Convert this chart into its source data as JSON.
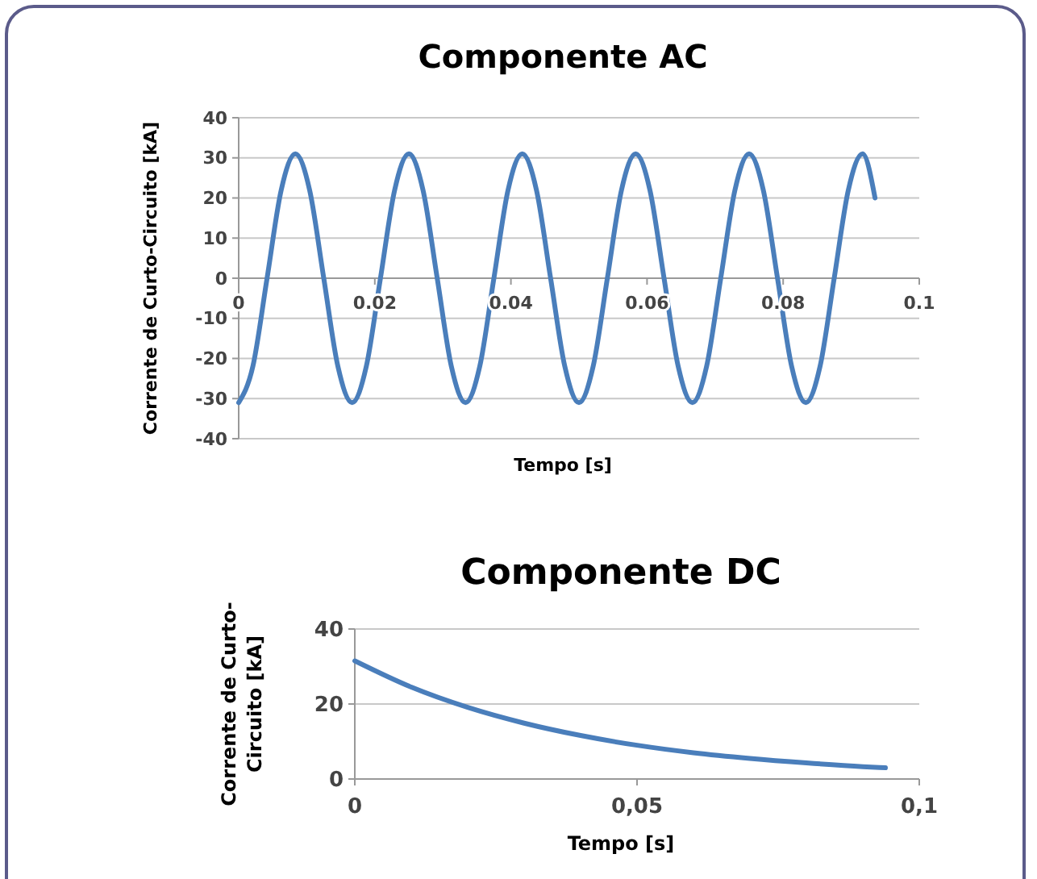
{
  "chart_data": [
    {
      "type": "line",
      "title": "Componente AC",
      "xlabel": "Tempo [s]",
      "ylabel": "Corrente de Curto-Circuito [kA]",
      "xlim": [
        0,
        0.1
      ],
      "xticks": [
        0,
        0.02,
        0.04,
        0.06,
        0.08,
        0.1
      ],
      "ylim": [
        -40,
        40
      ],
      "yticks": [
        -40,
        -30,
        -20,
        -10,
        0,
        10,
        20,
        30,
        40
      ],
      "grid": "y",
      "marker": "none",
      "line_style": "solid",
      "series": [
        {
          "color": "#4a7ebb",
          "x": [
            0,
            0.00208,
            0.00417,
            0.00625,
            0.00833,
            0.01042,
            0.0125,
            0.01458,
            0.01667,
            0.01875,
            0.02083,
            0.02292,
            0.025,
            0.02708,
            0.02917,
            0.03125,
            0.03333,
            0.03542,
            0.0375,
            0.03958,
            0.04167,
            0.04375,
            0.04583,
            0.04792,
            0.05,
            0.05208,
            0.05417,
            0.05625,
            0.05833,
            0.06042,
            0.0625,
            0.06458,
            0.06667,
            0.06875,
            0.07083,
            0.07292,
            0.075,
            0.07708,
            0.07917,
            0.08125,
            0.08333,
            0.08542,
            0.0875,
            0.08958,
            0.09167,
            0.0935
          ],
          "values": [
            -31,
            -22,
            0,
            22,
            31,
            22,
            0,
            -22,
            -31,
            -22,
            0,
            22,
            31,
            22,
            0,
            -22,
            -31,
            -22,
            0,
            22,
            31,
            22,
            0,
            -22,
            -31,
            -22,
            0,
            22,
            31,
            22,
            0,
            -22,
            -31,
            -22,
            0,
            22,
            31,
            22,
            0,
            -22,
            -31,
            -22,
            0,
            22,
            31,
            20
          ]
        }
      ]
    },
    {
      "type": "line",
      "title": "Componente DC",
      "xlabel": "Tempo [s]",
      "ylabel": "Corrente de Curto-Circuito [kA]",
      "xlim": [
        0,
        0.1
      ],
      "xticks": [
        0,
        {
          "value": 0.05,
          "label": "0,05"
        },
        {
          "value": 0.1,
          "label": "0,1"
        }
      ],
      "ylim": [
        0,
        40
      ],
      "yticks": [
        0,
        20,
        40
      ],
      "grid": "y",
      "marker": "none",
      "line_style": "solid",
      "series": [
        {
          "color": "#4a7ebb",
          "x": [
            0,
            0.01,
            0.02,
            0.03,
            0.04,
            0.05,
            0.06,
            0.07,
            0.08,
            0.09,
            0.094
          ],
          "values": [
            31.5,
            24.5,
            19.1,
            14.9,
            11.6,
            9,
            7,
            5.5,
            4.3,
            3.3,
            3
          ]
        }
      ]
    }
  ]
}
